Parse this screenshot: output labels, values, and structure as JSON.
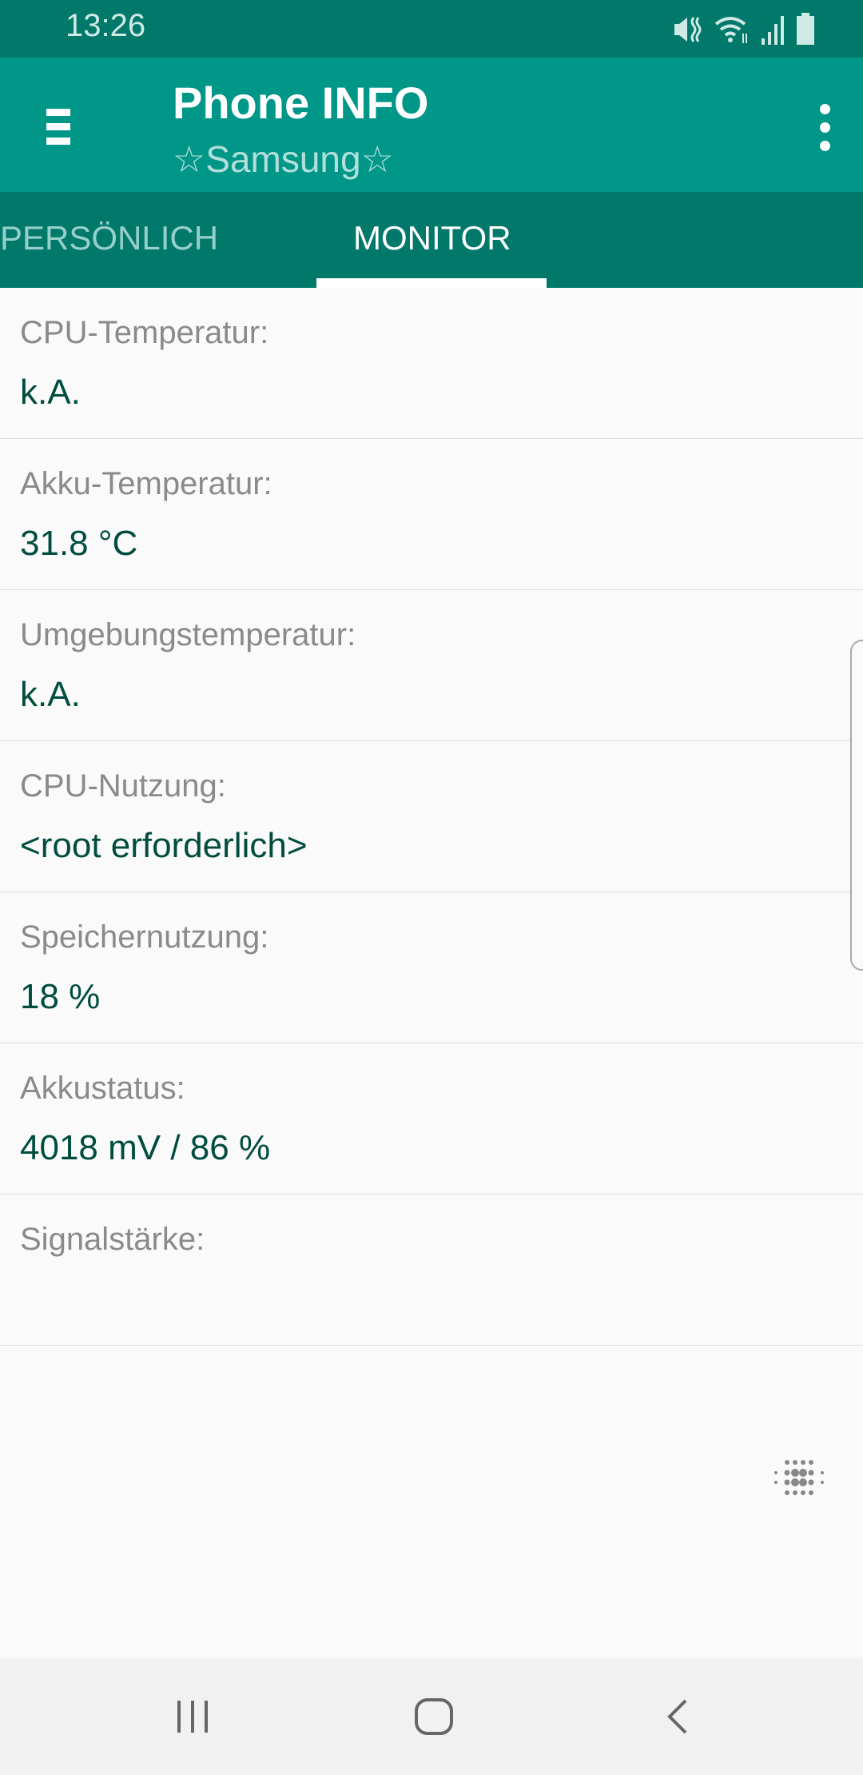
{
  "status_bar": {
    "time": "13:26",
    "icons": [
      "mute-vibrate-icon",
      "wifi-icon",
      "signal-icon",
      "battery-icon"
    ]
  },
  "app_bar": {
    "title": "Phone INFO",
    "subtitle": "☆Samsung☆",
    "menu_icon": "hamburger-icon",
    "more_icon": "more-vert-icon"
  },
  "tabs": [
    {
      "label": "PERSÖNLICH",
      "active": false
    },
    {
      "label": "MONITOR",
      "active": true
    }
  ],
  "items": [
    {
      "label": "CPU-Temperatur:",
      "value": "k.A."
    },
    {
      "label": "Akku-Temperatur:",
      "value": "31.8 °C"
    },
    {
      "label": "Umgebungstemperatur:",
      "value": "k.A."
    },
    {
      "label": "CPU-Nutzung:",
      "value": "<root erforderlich>"
    },
    {
      "label": "Speichernutzung:",
      "value": "18 %"
    },
    {
      "label": "Akkustatus:",
      "value": "4018 mV / 86 %"
    },
    {
      "label": "Signalstärke:",
      "value": ""
    }
  ],
  "colors": {
    "status_bar": "#00796b",
    "app_bar": "#009688",
    "value_text": "#004d40"
  },
  "nav_bar": {
    "icons": [
      "recents-icon",
      "home-icon",
      "back-icon"
    ]
  }
}
